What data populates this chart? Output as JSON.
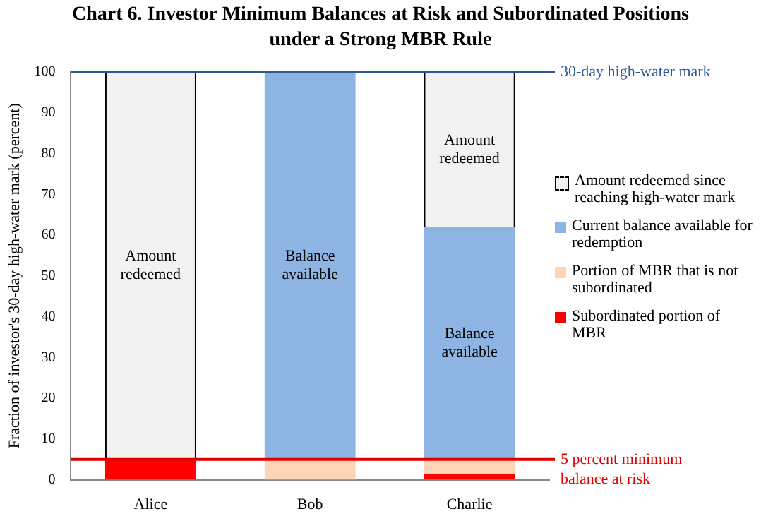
{
  "chart_data": {
    "type": "bar",
    "title": "Chart 6. Investor Minimum Balances at Risk and Subordinated Positions under a Strong MBR Rule",
    "ylabel": "Fraction of investor's 30-day high-water mark (percent)",
    "categories": [
      "Alice",
      "Bob",
      "Charlie"
    ],
    "stacked": true,
    "series": [
      {
        "name": "Subordinated portion of MBR",
        "color": "#ff0000",
        "values": [
          5,
          0,
          1.5
        ]
      },
      {
        "name": "Portion of MBR that is not subordinated",
        "color": "#fbd5b5",
        "values": [
          0,
          5,
          3.5
        ]
      },
      {
        "name": "Current balance available for redemption",
        "color": "#8eb4e3",
        "values": [
          0,
          95,
          57
        ],
        "value_labels": [
          null,
          "Balance available",
          "Balance available"
        ]
      },
      {
        "name": "Amount redeemed since reaching high-water mark",
        "color": "#f2f2f2",
        "values": [
          95,
          0,
          38
        ],
        "value_labels": [
          "Amount redeemed",
          null,
          "Amount redeemed"
        ]
      }
    ],
    "ylim": [
      0,
      100
    ],
    "yticks": [
      0,
      10,
      20,
      30,
      40,
      50,
      60,
      70,
      80,
      90,
      100
    ],
    "grid": false,
    "legend": "right",
    "ref_lines": [
      {
        "axis": "y",
        "value": 100,
        "label": "30-day high-water mark",
        "color": "#2e5a94"
      },
      {
        "axis": "y",
        "value": 5,
        "label": "5 percent minimum balance at risk",
        "color": "#e00000"
      }
    ]
  }
}
